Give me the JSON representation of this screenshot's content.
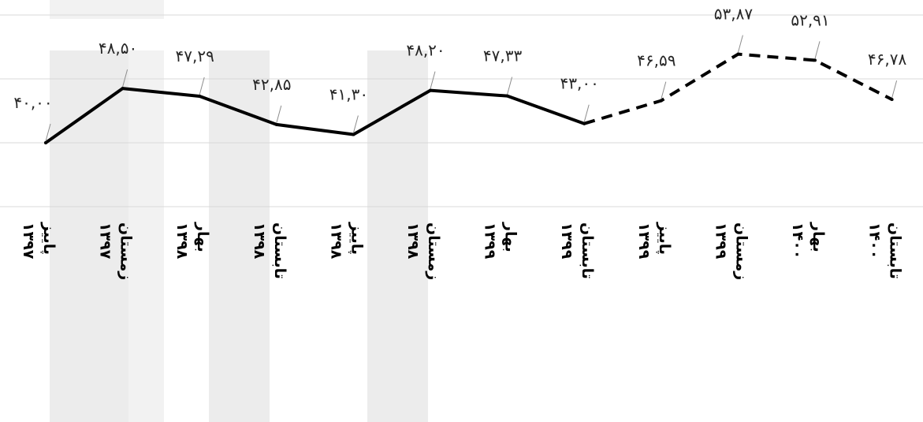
{
  "chart_data": {
    "type": "line",
    "categories": [
      [
        "پاییز",
        "۱۳۹۷"
      ],
      [
        "زمستان",
        "۱۳۹۷"
      ],
      [
        "بهار",
        "۱۳۹۸"
      ],
      [
        "تابستان",
        "۱۳۹۸"
      ],
      [
        "پاییز",
        "۱۳۹۸"
      ],
      [
        "زمستان",
        "۱۳۹۸"
      ],
      [
        "بهار",
        "۱۳۹۹"
      ],
      [
        "تابستان",
        "۱۳۹۹"
      ],
      [
        "پاییز",
        "۱۳۹۹"
      ],
      [
        "زمستان",
        "۱۳۹۹"
      ],
      [
        "بهار",
        "۱۴۰۰"
      ],
      [
        "تابستان",
        "۱۴۰۰"
      ]
    ],
    "values": [
      40.0,
      48.5,
      47.29,
      42.85,
      41.3,
      48.2,
      47.33,
      43.0,
      46.59,
      53.87,
      52.91,
      46.78
    ],
    "value_labels": [
      "۴۰,۰۰",
      "۴۸,۵۰",
      "۴۷,۲۹",
      "۴۲,۸۵",
      "۴۱,۳۰",
      "۴۸,۲۰",
      "۴۷,۳۳",
      "۴۳,۰۰",
      "۴۶,۵۹",
      "۵۳,۸۷",
      "۵۲,۹۱",
      "۴۶,۷۸"
    ],
    "dashed_from_index": 7,
    "ylim": [
      30,
      60
    ],
    "grid": true,
    "line_color": "#000000",
    "title": "",
    "xlabel": "",
    "ylabel": ""
  }
}
